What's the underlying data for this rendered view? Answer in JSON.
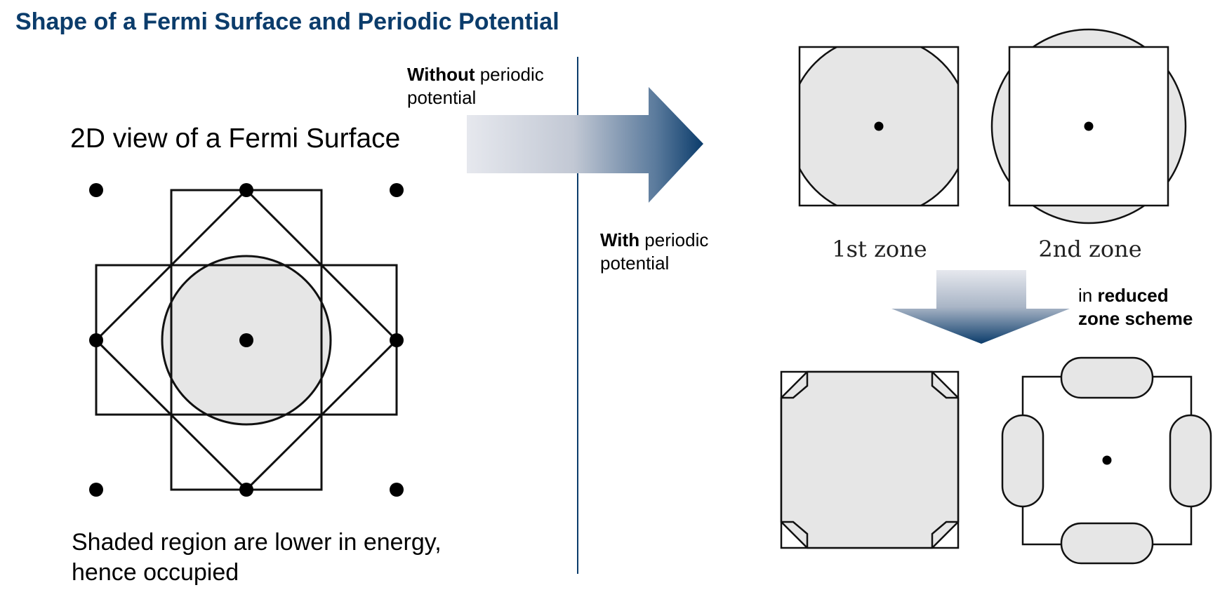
{
  "title": "Shape of a Fermi Surface and Periodic Potential",
  "left_panel": {
    "subtitle": "2D view of a Fermi Surface",
    "caption_line1": "Shaded region are lower in energy,",
    "caption_line2": "hence occupied"
  },
  "arrow_labels": {
    "without_bold": "Without",
    "without_rest": " periodic",
    "without_line2": "potential",
    "with_bold": "With",
    "with_rest": " periodic",
    "with_line2": "potential"
  },
  "zones": {
    "first": "1st zone",
    "second": "2nd zone"
  },
  "reduced": {
    "prefix": "in ",
    "bold1": "reduced",
    "bold2": "zone scheme"
  },
  "colors": {
    "title": "#0b3c6b",
    "accent": "#0b3c6b",
    "shade": "#e6e6e6",
    "line": "#111111"
  }
}
